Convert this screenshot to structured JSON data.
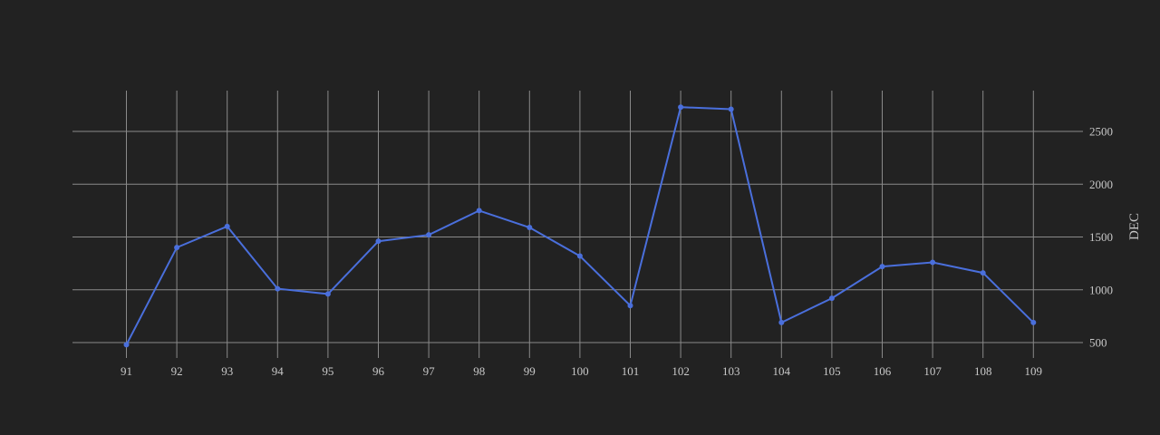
{
  "chart_data": {
    "type": "line",
    "title": "",
    "xlabel": "",
    "ylabel": "DEC",
    "y_axis_side": "right",
    "grid": true,
    "x": [
      91,
      92,
      93,
      94,
      95,
      96,
      97,
      98,
      99,
      100,
      101,
      102,
      103,
      104,
      105,
      106,
      107,
      108,
      109
    ],
    "x_ticks": [
      "91",
      "92",
      "93",
      "94",
      "95",
      "96",
      "97",
      "98",
      "99",
      "100",
      "101",
      "102",
      "103",
      "104",
      "105",
      "106",
      "107",
      "108",
      "109"
    ],
    "y_ticks": [
      500,
      1000,
      1500,
      2000,
      2500
    ],
    "ylim": [
      390,
      2780
    ],
    "series": [
      {
        "color": "#4a6fdc",
        "values": [
          480,
          1400,
          1600,
          1010,
          960,
          1460,
          1520,
          1750,
          1590,
          1320,
          850,
          2730,
          2710,
          690,
          920,
          1220,
          1260,
          1160,
          690
        ]
      }
    ]
  },
  "colors": {
    "background": "#222222",
    "grid": "#8a8a8a",
    "text": "#c8c8c8"
  }
}
